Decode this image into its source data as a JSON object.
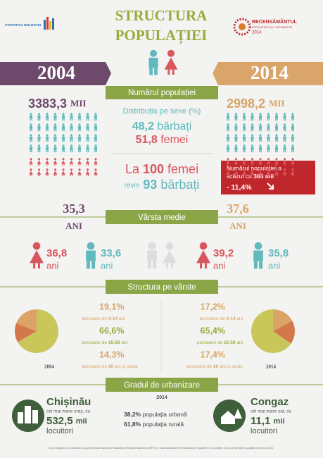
{
  "header": {
    "logo_left": "STATISTICA MOLDOVEI",
    "title_line1": "STRUCTURA",
    "title_line2": "POPULAȚIEI",
    "logo_right": {
      "line1": "RECENSĂMÂNTUL",
      "line2": "POPULAȚIEI ȘI AL LOCUINȚELOR",
      "year": "2014"
    }
  },
  "years": {
    "left": "2004",
    "right": "2014"
  },
  "population": {
    "heading": "Numărul populației",
    "left": {
      "value": "3383,3",
      "unit": "MII"
    },
    "right": {
      "value": "2998,2",
      "unit": "MII"
    },
    "sex_heading": "Distribuția pe sexe (%)",
    "men": {
      "value": "48,2",
      "label": "bărbați"
    },
    "women": {
      "value": "51,8",
      "label": "femei"
    },
    "ratio": {
      "line1": [
        "La",
        "100",
        "femei"
      ],
      "line2": [
        "revin",
        "93",
        "bărbați"
      ]
    },
    "decline": {
      "line1": "Numărul populației a",
      "line2": "scăzut cu",
      "amount": "385 mii",
      "percent": "- 11,4%"
    }
  },
  "age": {
    "heading": "Vârsta medie",
    "left": {
      "value": "35,3",
      "unit": "ANI"
    },
    "right": {
      "value": "37,6",
      "unit": "ANI"
    },
    "left_women": {
      "value": "36,8",
      "unit": "ani"
    },
    "left_men": {
      "value": "33,6",
      "unit": "ani"
    },
    "right_women": {
      "value": "39,2",
      "unit": "ani"
    },
    "right_men": {
      "value": "35,8",
      "unit": "ani"
    }
  },
  "structure": {
    "heading": "Structura pe vârste",
    "groups": [
      {
        "prefix": "persoane de",
        "range": "0-14",
        "suffix": "ani"
      },
      {
        "prefix": "persoane de",
        "range": "15-59",
        "suffix": "ani"
      },
      {
        "prefix": "persoane de",
        "range": "60",
        "suffix": "ani și peste"
      }
    ],
    "colors": [
      "#dba466",
      "#c9c65a",
      "#d2784a"
    ],
    "pies": [
      {
        "year": "2004",
        "values": [
          19.1,
          66.6,
          14.3
        ],
        "value_labels": [
          "19,1%",
          "66,6%",
          "14,3%"
        ]
      },
      {
        "year": "2014",
        "values": [
          17.2,
          65.4,
          17.4
        ],
        "value_labels": [
          "17,2%",
          "65,4%",
          "17,4%"
        ]
      }
    ]
  },
  "urbanization": {
    "heading": "Gradul de urbanizare",
    "year": "2014",
    "city": {
      "name": "Chișinău",
      "desc": "cel mai mare oraș, cu",
      "value": "532,5",
      "unit": "mii",
      "label": "locuitori"
    },
    "village": {
      "name": "Congaz",
      "desc": "cel mai mare sat, cu",
      "value": "11,1",
      "unit": "mii",
      "label": "locuitori"
    },
    "urban": {
      "value": "38,2%",
      "label": "populația urbană"
    },
    "rural": {
      "value": "61,8%",
      "label": "populația rurală"
    }
  },
  "footer": "Acest infografic a fost elaborat cu suportul Biroului Național de Statistică al Republicii Moldova și UNFPA, în baza rezultatelor Recensământului Populației și al Locuințelor 2014 și a estimărilor populației pentru anul 2004."
}
